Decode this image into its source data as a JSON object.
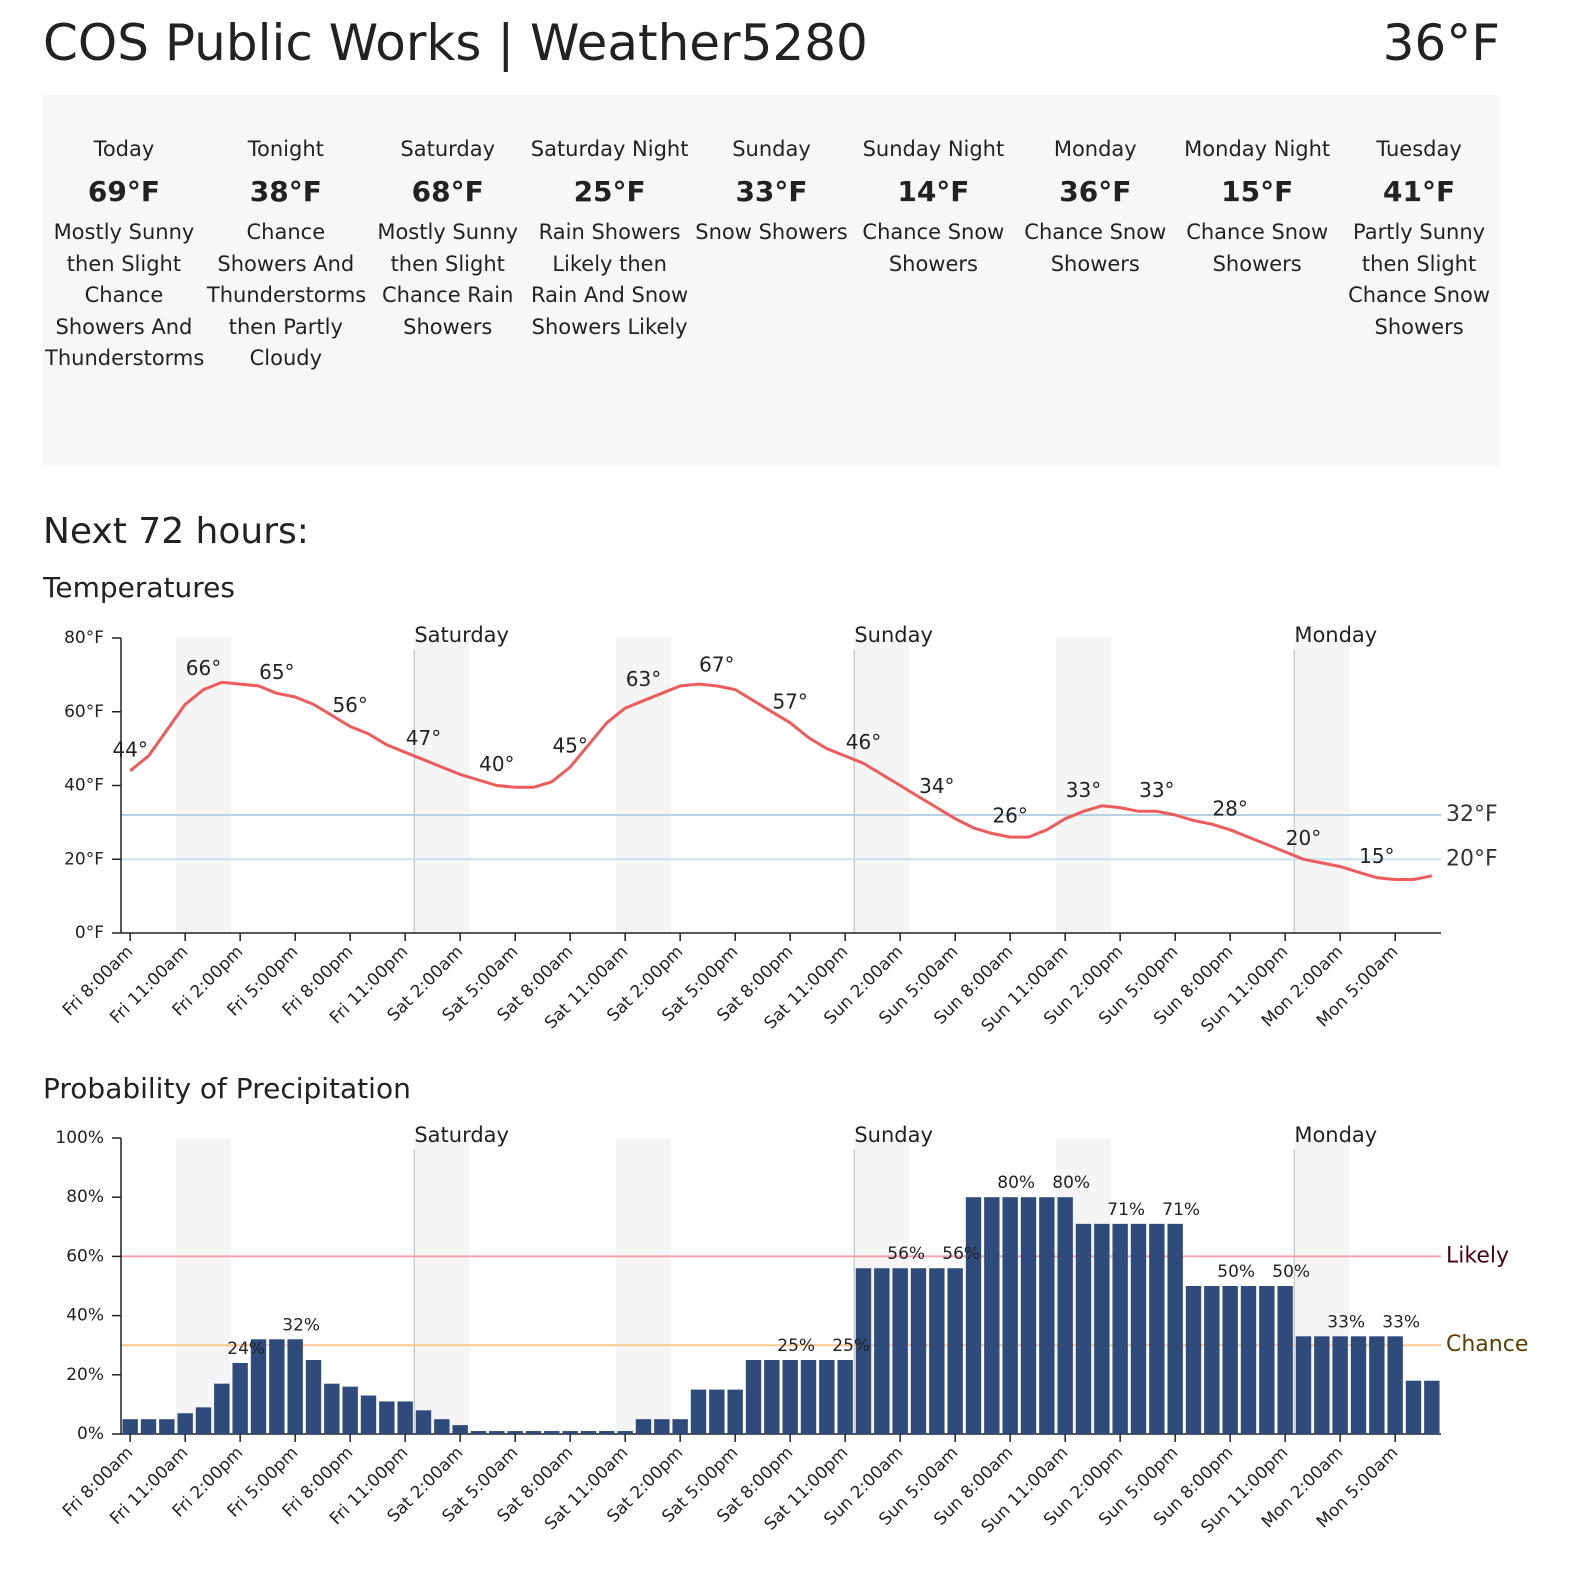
{
  "header": {
    "title": "COS Public Works | Weather5280",
    "current_temp": "36°F"
  },
  "forecast": [
    {
      "name": "Today",
      "temp": "69°F",
      "description": "Mostly Sunny then Slight Chance Showers And Thunderstorms"
    },
    {
      "name": "Tonight",
      "temp": "38°F",
      "description": "Chance Showers And Thunderstorms then Partly Cloudy"
    },
    {
      "name": "Saturday",
      "temp": "68°F",
      "description": "Mostly Sunny then Slight Chance Rain Showers"
    },
    {
      "name": "Saturday Night",
      "temp": "25°F",
      "description": "Rain Showers Likely then Rain And Snow Showers Likely"
    },
    {
      "name": "Sunday",
      "temp": "33°F",
      "description": "Snow Showers"
    },
    {
      "name": "Sunday Night",
      "temp": "14°F",
      "description": "Chance Snow Showers"
    },
    {
      "name": "Monday",
      "temp": "36°F",
      "description": "Chance Snow Showers"
    },
    {
      "name": "Monday Night",
      "temp": "15°F",
      "description": "Chance Snow Showers"
    },
    {
      "name": "Tuesday",
      "temp": "41°F",
      "description": "Partly Sunny then Slight Chance Snow Showers"
    }
  ],
  "section_title": "Next 72 hours:",
  "chart_data": [
    {
      "type": "line",
      "title": "Temperatures",
      "color": "#ef5b5b",
      "days": [
        "Saturday",
        "Sunday",
        "Monday"
      ],
      "categories": [
        "Fri 8:00am",
        null,
        null,
        "Fri 11:00am",
        null,
        null,
        "Fri 2:00pm",
        null,
        null,
        "Fri 5:00pm",
        null,
        null,
        "Fri 8:00pm",
        null,
        null,
        "Fri 11:00pm",
        null,
        null,
        "Sat 2:00am",
        null,
        null,
        "Sat 5:00am",
        null,
        null,
        "Sat 8:00am",
        null,
        null,
        "Sat 11:00am",
        null,
        null,
        "Sat 2:00pm",
        null,
        null,
        "Sat 5:00pm",
        null,
        null,
        "Sat 8:00pm",
        null,
        null,
        "Sat 11:00pm",
        null,
        null,
        "Sun 2:00am",
        null,
        null,
        "Sun 5:00am",
        null,
        null,
        "Sun 8:00am",
        null,
        null,
        "Sun 11:00am",
        null,
        null,
        "Sun 2:00pm",
        null,
        null,
        "Sun 5:00pm",
        null,
        null,
        "Sun 8:00pm",
        null,
        null,
        "Sun 11:00pm",
        null,
        null,
        "Mon 2:00am",
        null,
        null,
        "Mon 5:00am",
        null,
        null
      ],
      "values": [
        44,
        48,
        55,
        62,
        66,
        68,
        67.5,
        67,
        65,
        64,
        62,
        59,
        56,
        54,
        51,
        49,
        47,
        45,
        43,
        41.5,
        40,
        39.5,
        39.5,
        41,
        45,
        51,
        57,
        61,
        63,
        65,
        67,
        67.5,
        67,
        66,
        63,
        60,
        57,
        53,
        50,
        48,
        46,
        43,
        40,
        37,
        34,
        31,
        28.5,
        27,
        26,
        26,
        28,
        31,
        33,
        34.5,
        34,
        33,
        33,
        32,
        30.5,
        29.5,
        28,
        26,
        24,
        22,
        20,
        19,
        18,
        16.5,
        15,
        14.5,
        14.5,
        15.5
      ],
      "value_labels": [
        "44°",
        null,
        null,
        null,
        "66°",
        null,
        null,
        null,
        "65°",
        null,
        null,
        null,
        "56°",
        null,
        null,
        null,
        "47°",
        null,
        null,
        null,
        "40°",
        null,
        null,
        null,
        "45°",
        null,
        null,
        null,
        "63°",
        null,
        null,
        null,
        "67°",
        null,
        null,
        null,
        "57°",
        null,
        null,
        null,
        "46°",
        null,
        null,
        null,
        "34°",
        null,
        null,
        null,
        "26°",
        null,
        null,
        null,
        "33°",
        null,
        null,
        null,
        "33°",
        null,
        null,
        null,
        "28°",
        null,
        null,
        null,
        "20°",
        null,
        null,
        null,
        "15°",
        null,
        null,
        null
      ],
      "ylim": [
        0,
        80
      ],
      "yticks": [
        {
          "value": 0,
          "label": "0°F"
        },
        {
          "value": 20,
          "label": "20°F"
        },
        {
          "value": 40,
          "label": "40°F"
        },
        {
          "value": 60,
          "label": "60°F"
        },
        {
          "value": 80,
          "label": "80°F"
        }
      ],
      "references": [
        {
          "value": 32,
          "label": "32°F",
          "color": "#b9d0e2",
          "label_color": "#333333"
        },
        {
          "value": 20,
          "label": "20°F",
          "color": "#c9e0f2",
          "label_color": "#333333"
        }
      ]
    },
    {
      "type": "bar",
      "title": "Probability of Precipitation",
      "color": "#2f4b7c",
      "days": [
        "Saturday",
        "Sunday",
        "Monday"
      ],
      "categories": [
        "Fri 8:00am",
        null,
        null,
        "Fri 11:00am",
        null,
        null,
        "Fri 2:00pm",
        null,
        null,
        "Fri 5:00pm",
        null,
        null,
        "Fri 8:00pm",
        null,
        null,
        "Fri 11:00pm",
        null,
        null,
        "Sat 2:00am",
        null,
        null,
        "Sat 5:00am",
        null,
        null,
        "Sat 8:00am",
        null,
        null,
        "Sat 11:00am",
        null,
        null,
        "Sat 2:00pm",
        null,
        null,
        "Sat 5:00pm",
        null,
        null,
        "Sat 8:00pm",
        null,
        null,
        "Sat 11:00pm",
        null,
        null,
        "Sun 2:00am",
        null,
        null,
        "Sun 5:00am",
        null,
        null,
        "Sun 8:00am",
        null,
        null,
        "Sun 11:00am",
        null,
        null,
        "Sun 2:00pm",
        null,
        null,
        "Sun 5:00pm",
        null,
        null,
        "Sun 8:00pm",
        null,
        null,
        "Sun 11:00pm",
        null,
        null,
        "Mon 2:00am",
        null,
        null,
        "Mon 5:00am",
        null,
        null
      ],
      "values": [
        5,
        5,
        5,
        7,
        9,
        17,
        24,
        32,
        32,
        32,
        25,
        17,
        16,
        13,
        11,
        11,
        8,
        5,
        3,
        1,
        1,
        1,
        1,
        1,
        1,
        1,
        1,
        1,
        5,
        5,
        5,
        15,
        15,
        15,
        25,
        25,
        25,
        25,
        25,
        25,
        56,
        56,
        56,
        56,
        56,
        56,
        80,
        80,
        80,
        80,
        80,
        80,
        71,
        71,
        71,
        71,
        71,
        71,
        50,
        50,
        50,
        50,
        50,
        50,
        33,
        33,
        33,
        33,
        33,
        33,
        18,
        18
      ],
      "value_labels": [
        null,
        null,
        null,
        null,
        null,
        null,
        "24%",
        null,
        null,
        "32%",
        null,
        null,
        null,
        null,
        null,
        null,
        null,
        null,
        null,
        null,
        null,
        null,
        null,
        null,
        null,
        null,
        null,
        null,
        null,
        null,
        null,
        null,
        null,
        null,
        null,
        null,
        "25%",
        null,
        null,
        "25%",
        null,
        null,
        "56%",
        null,
        null,
        "56%",
        null,
        null,
        "80%",
        null,
        null,
        "80%",
        null,
        null,
        "71%",
        null,
        null,
        "71%",
        null,
        null,
        "50%",
        null,
        null,
        "50%",
        null,
        null,
        "33%",
        null,
        null,
        "33%",
        null,
        null
      ],
      "ylim": [
        0,
        100
      ],
      "yticks": [
        {
          "value": 0,
          "label": "0%"
        },
        {
          "value": 20,
          "label": "20%"
        },
        {
          "value": 40,
          "label": "40%"
        },
        {
          "value": 60,
          "label": "60%"
        },
        {
          "value": 80,
          "label": "80%"
        },
        {
          "value": 100,
          "label": "100%"
        }
      ],
      "references": [
        {
          "value": 60,
          "label": "Likely",
          "color": "#f4a3ad",
          "label_color": "#4a0010"
        },
        {
          "value": 30,
          "label": "Chance",
          "color": "#f9c98e",
          "label_color": "#5a3e00"
        }
      ]
    }
  ]
}
